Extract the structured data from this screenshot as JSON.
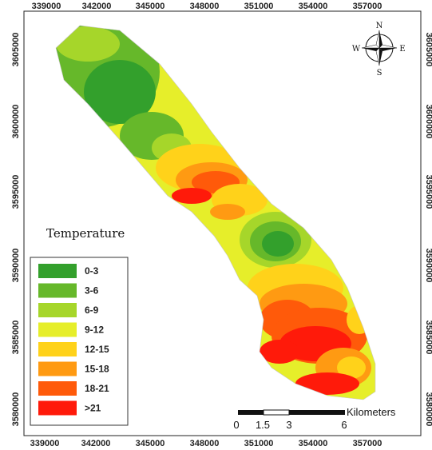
{
  "map": {
    "x_ticks": [
      "339000",
      "342000",
      "345000",
      "348000",
      "351000",
      "354000",
      "357000"
    ],
    "y_ticks": [
      "3605000",
      "3600000",
      "3595000",
      "3590000",
      "3585000",
      "3580000"
    ],
    "legend": {
      "title": "Temperature",
      "classes": [
        {
          "label": "0-3",
          "color": "#33a02c"
        },
        {
          "label": "3-6",
          "color": "#66b82a"
        },
        {
          "label": "6-9",
          "color": "#a6d62a"
        },
        {
          "label": "9-12",
          "color": "#e6ee2a"
        },
        {
          "label": "12-15",
          "color": "#ffd21a"
        },
        {
          "label": "15-18",
          "color": "#ff9a12"
        },
        {
          "label": "18-21",
          "color": "#ff5a0a"
        },
        {
          "label": ">21",
          "color": "#ff1a0a"
        }
      ]
    },
    "compass": {
      "n": "N",
      "s": "S",
      "e": "E",
      "w": "W"
    },
    "scale": {
      "ticks": [
        "0",
        "1.5",
        "3",
        "6"
      ],
      "unit": "Kilometers"
    }
  }
}
